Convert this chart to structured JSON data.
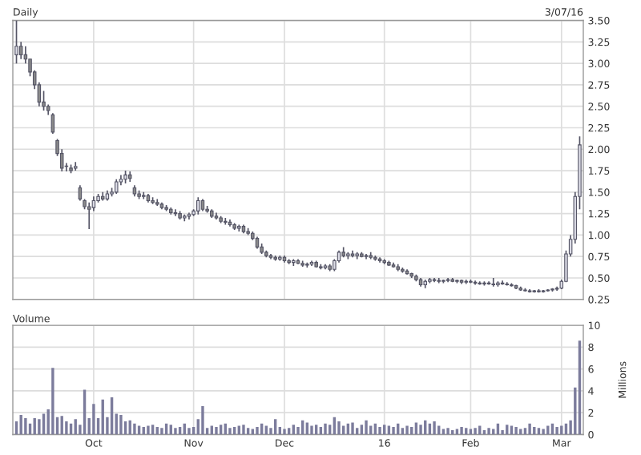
{
  "chart_data": [
    {
      "type": "candlestick",
      "title": "Daily",
      "annotations": [
        "3/07/16"
      ],
      "grid": true,
      "legend": false,
      "categories": [
        null,
        null,
        null,
        null,
        null,
        null,
        null,
        null,
        null,
        null,
        null,
        null,
        null,
        null,
        null,
        null,
        null,
        null,
        null,
        null,
        null,
        null,
        null,
        null,
        null,
        null,
        null,
        null,
        null,
        null,
        null,
        null,
        null,
        null,
        null,
        null,
        null,
        null,
        null,
        null,
        null,
        null,
        null,
        null,
        null,
        null,
        null,
        null,
        null,
        null,
        null,
        null,
        null,
        null,
        null,
        null,
        null,
        null,
        null,
        null,
        null,
        null,
        null,
        null,
        null,
        null,
        null,
        null,
        null,
        null,
        null,
        null,
        null,
        null,
        null,
        null,
        null,
        null,
        null,
        null,
        null,
        null,
        null,
        null,
        null,
        null,
        null,
        null,
        null,
        null,
        null,
        null,
        null,
        null,
        null,
        null,
        null,
        null,
        null,
        null,
        null,
        null,
        null,
        null,
        null,
        null,
        null,
        null,
        null,
        null,
        null,
        null,
        null,
        null,
        null,
        null,
        null,
        null,
        null,
        null,
        null,
        null,
        null,
        null,
        null
      ],
      "ohlc": [
        [
          3.1,
          3.5,
          3.0,
          3.2
        ],
        [
          3.2,
          3.25,
          3.05,
          3.1
        ],
        [
          3.1,
          3.2,
          3.0,
          3.05
        ],
        [
          3.05,
          3.05,
          2.85,
          2.9
        ],
        [
          2.9,
          2.92,
          2.7,
          2.75
        ],
        [
          2.75,
          2.78,
          2.5,
          2.55
        ],
        [
          2.55,
          2.68,
          2.45,
          2.5
        ],
        [
          2.5,
          2.52,
          2.4,
          2.45
        ],
        [
          2.4,
          2.42,
          2.18,
          2.2
        ],
        [
          2.1,
          2.12,
          1.92,
          1.95
        ],
        [
          1.95,
          2.0,
          1.74,
          1.78
        ],
        [
          1.8,
          1.84,
          1.74,
          1.8
        ],
        [
          1.78,
          1.82,
          1.72,
          1.75
        ],
        [
          1.78,
          1.85,
          1.75,
          1.8
        ],
        [
          1.55,
          1.58,
          1.4,
          1.42
        ],
        [
          1.4,
          1.42,
          1.3,
          1.33
        ],
        [
          1.33,
          1.38,
          1.07,
          1.3
        ],
        [
          1.32,
          1.45,
          1.28,
          1.4
        ],
        [
          1.4,
          1.48,
          1.38,
          1.45
        ],
        [
          1.45,
          1.5,
          1.4,
          1.42
        ],
        [
          1.42,
          1.52,
          1.4,
          1.48
        ],
        [
          1.48,
          1.55,
          1.45,
          1.5
        ],
        [
          1.5,
          1.65,
          1.48,
          1.62
        ],
        [
          1.62,
          1.7,
          1.58,
          1.65
        ],
        [
          1.65,
          1.75,
          1.6,
          1.7
        ],
        [
          1.7,
          1.74,
          1.62,
          1.66
        ],
        [
          1.55,
          1.58,
          1.45,
          1.48
        ],
        [
          1.48,
          1.52,
          1.42,
          1.45
        ],
        [
          1.45,
          1.5,
          1.42,
          1.46
        ],
        [
          1.46,
          1.48,
          1.38,
          1.4
        ],
        [
          1.4,
          1.44,
          1.36,
          1.38
        ],
        [
          1.38,
          1.42,
          1.34,
          1.36
        ],
        [
          1.36,
          1.38,
          1.3,
          1.32
        ],
        [
          1.32,
          1.35,
          1.28,
          1.3
        ],
        [
          1.3,
          1.32,
          1.24,
          1.26
        ],
        [
          1.26,
          1.3,
          1.22,
          1.25
        ],
        [
          1.25,
          1.28,
          1.18,
          1.2
        ],
        [
          1.2,
          1.24,
          1.16,
          1.22
        ],
        [
          1.22,
          1.26,
          1.18,
          1.24
        ],
        [
          1.24,
          1.3,
          1.22,
          1.28
        ],
        [
          1.28,
          1.44,
          1.24,
          1.4
        ],
        [
          1.4,
          1.42,
          1.28,
          1.3
        ],
        [
          1.3,
          1.34,
          1.26,
          1.28
        ],
        [
          1.28,
          1.3,
          1.2,
          1.22
        ],
        [
          1.22,
          1.26,
          1.18,
          1.2
        ],
        [
          1.2,
          1.22,
          1.14,
          1.16
        ],
        [
          1.16,
          1.2,
          1.12,
          1.15
        ],
        [
          1.15,
          1.18,
          1.1,
          1.12
        ],
        [
          1.12,
          1.14,
          1.06,
          1.08
        ],
        [
          1.08,
          1.12,
          1.04,
          1.1
        ],
        [
          1.1,
          1.12,
          1.02,
          1.04
        ],
        [
          1.04,
          1.08,
          1.0,
          1.02
        ],
        [
          1.02,
          1.04,
          0.94,
          0.96
        ],
        [
          0.96,
          0.98,
          0.84,
          0.86
        ],
        [
          0.86,
          0.9,
          0.78,
          0.8
        ],
        [
          0.8,
          0.82,
          0.74,
          0.76
        ],
        [
          0.76,
          0.78,
          0.72,
          0.74
        ],
        [
          0.74,
          0.76,
          0.7,
          0.72
        ],
        [
          0.72,
          0.76,
          0.7,
          0.74
        ],
        [
          0.74,
          0.76,
          0.68,
          0.7
        ],
        [
          0.7,
          0.72,
          0.66,
          0.68
        ],
        [
          0.68,
          0.72,
          0.64,
          0.7
        ],
        [
          0.7,
          0.72,
          0.66,
          0.67
        ],
        [
          0.67,
          0.7,
          0.63,
          0.65
        ],
        [
          0.65,
          0.68,
          0.62,
          0.66
        ],
        [
          0.66,
          0.7,
          0.64,
          0.68
        ],
        [
          0.68,
          0.7,
          0.62,
          0.63
        ],
        [
          0.63,
          0.66,
          0.6,
          0.62
        ],
        [
          0.62,
          0.66,
          0.6,
          0.64
        ],
        [
          0.64,
          0.66,
          0.58,
          0.6
        ],
        [
          0.6,
          0.72,
          0.58,
          0.7
        ],
        [
          0.7,
          0.82,
          0.68,
          0.8
        ],
        [
          0.8,
          0.86,
          0.74,
          0.76
        ],
        [
          0.76,
          0.8,
          0.72,
          0.78
        ],
        [
          0.78,
          0.82,
          0.74,
          0.76
        ],
        [
          0.76,
          0.8,
          0.72,
          0.78
        ],
        [
          0.78,
          0.8,
          0.74,
          0.75
        ],
        [
          0.75,
          0.78,
          0.72,
          0.76
        ],
        [
          0.76,
          0.8,
          0.72,
          0.74
        ],
        [
          0.74,
          0.76,
          0.7,
          0.72
        ],
        [
          0.72,
          0.74,
          0.68,
          0.7
        ],
        [
          0.7,
          0.72,
          0.66,
          0.68
        ],
        [
          0.68,
          0.7,
          0.64,
          0.65
        ],
        [
          0.65,
          0.68,
          0.62,
          0.63
        ],
        [
          0.63,
          0.66,
          0.58,
          0.6
        ],
        [
          0.6,
          0.62,
          0.56,
          0.58
        ],
        [
          0.58,
          0.6,
          0.54,
          0.55
        ],
        [
          0.55,
          0.56,
          0.5,
          0.52
        ],
        [
          0.52,
          0.54,
          0.46,
          0.48
        ],
        [
          0.48,
          0.5,
          0.4,
          0.42
        ],
        [
          0.42,
          0.48,
          0.38,
          0.46
        ],
        [
          0.46,
          0.5,
          0.44,
          0.48
        ],
        [
          0.48,
          0.5,
          0.45,
          0.47
        ],
        [
          0.47,
          0.5,
          0.44,
          0.46
        ],
        [
          0.46,
          0.48,
          0.44,
          0.47
        ],
        [
          0.47,
          0.5,
          0.45,
          0.48
        ],
        [
          0.48,
          0.5,
          0.45,
          0.46
        ],
        [
          0.46,
          0.48,
          0.44,
          0.47
        ],
        [
          0.47,
          0.48,
          0.43,
          0.45
        ],
        [
          0.45,
          0.48,
          0.43,
          0.46
        ],
        [
          0.46,
          0.48,
          0.44,
          0.45
        ],
        [
          0.45,
          0.47,
          0.42,
          0.44
        ],
        [
          0.44,
          0.46,
          0.42,
          0.43
        ],
        [
          0.43,
          0.46,
          0.41,
          0.44
        ],
        [
          0.44,
          0.46,
          0.42,
          0.43
        ],
        [
          0.43,
          0.5,
          0.4,
          0.42
        ],
        [
          0.42,
          0.46,
          0.4,
          0.44
        ],
        [
          0.44,
          0.47,
          0.42,
          0.43
        ],
        [
          0.43,
          0.45,
          0.41,
          0.42
        ],
        [
          0.42,
          0.44,
          0.4,
          0.41
        ],
        [
          0.41,
          0.42,
          0.37,
          0.38
        ],
        [
          0.38,
          0.4,
          0.35,
          0.36
        ],
        [
          0.36,
          0.38,
          0.34,
          0.35
        ],
        [
          0.35,
          0.37,
          0.33,
          0.34
        ],
        [
          0.34,
          0.36,
          0.33,
          0.35
        ],
        [
          0.35,
          0.37,
          0.33,
          0.34
        ],
        [
          0.34,
          0.36,
          0.33,
          0.35
        ],
        [
          0.35,
          0.37,
          0.34,
          0.36
        ],
        [
          0.36,
          0.38,
          0.34,
          0.37
        ],
        [
          0.37,
          0.4,
          0.35,
          0.38
        ],
        [
          0.38,
          0.48,
          0.37,
          0.46
        ],
        [
          0.46,
          0.82,
          0.45,
          0.78
        ],
        [
          0.78,
          1.0,
          0.75,
          0.95
        ],
        [
          0.95,
          1.5,
          0.9,
          1.45
        ],
        [
          1.45,
          2.15,
          1.3,
          2.05
        ]
      ],
      "ylim": [
        0.25,
        3.5
      ],
      "yticks": [
        {
          "value": 0.25,
          "label": "0.25"
        },
        {
          "value": 0.5,
          "label": "0.50"
        },
        {
          "value": 0.75,
          "label": "0.75"
        },
        {
          "value": 1.0,
          "label": "1.00"
        },
        {
          "value": 1.25,
          "label": "1.25"
        },
        {
          "value": 1.5,
          "label": "1.50"
        },
        {
          "value": 1.75,
          "label": "1.75"
        },
        {
          "value": 2.0,
          "label": "2.00"
        },
        {
          "value": 2.25,
          "label": "2.25"
        },
        {
          "value": 2.5,
          "label": "2.50"
        },
        {
          "value": 2.75,
          "label": "2.75"
        },
        {
          "value": 3.0,
          "label": "3.00"
        },
        {
          "value": 3.25,
          "label": "3.25"
        },
        {
          "value": 3.5,
          "label": "3.50"
        }
      ]
    },
    {
      "type": "bar",
      "title": "Volume",
      "ylabel": "Millions",
      "grid": true,
      "legend": false,
      "color": "#7c7c9c",
      "categories": [
        null,
        null,
        null,
        null,
        null,
        null,
        null,
        null,
        null,
        null,
        null,
        null,
        null,
        null,
        null,
        null,
        null,
        "Oct",
        null,
        null,
        null,
        null,
        null,
        null,
        null,
        null,
        null,
        null,
        null,
        null,
        null,
        null,
        null,
        null,
        null,
        null,
        null,
        null,
        null,
        "Nov",
        null,
        null,
        null,
        null,
        null,
        null,
        null,
        null,
        null,
        null,
        null,
        null,
        null,
        null,
        null,
        null,
        null,
        null,
        null,
        "Dec",
        null,
        null,
        null,
        null,
        null,
        null,
        null,
        null,
        null,
        null,
        null,
        null,
        null,
        null,
        null,
        null,
        null,
        null,
        null,
        null,
        null,
        "16",
        null,
        null,
        null,
        null,
        null,
        null,
        null,
        null,
        null,
        null,
        null,
        null,
        null,
        null,
        null,
        null,
        null,
        null,
        "Feb",
        null,
        null,
        null,
        null,
        null,
        null,
        null,
        null,
        null,
        null,
        null,
        null,
        null,
        null,
        null,
        null,
        null,
        null,
        null,
        "Mar",
        null,
        null,
        null,
        null
      ],
      "values": [
        1.2,
        1.8,
        1.5,
        1.0,
        1.5,
        1.4,
        1.9,
        2.3,
        6.1,
        1.6,
        1.7,
        1.2,
        1.0,
        1.4,
        0.9,
        4.1,
        1.5,
        2.8,
        1.5,
        3.2,
        1.6,
        3.4,
        1.9,
        1.8,
        1.2,
        1.3,
        1.0,
        0.8,
        0.7,
        0.8,
        0.9,
        0.7,
        0.6,
        1.0,
        0.9,
        0.6,
        0.7,
        1.0,
        0.6,
        0.7,
        1.4,
        2.6,
        0.6,
        0.8,
        0.7,
        0.9,
        1.0,
        0.6,
        0.7,
        0.8,
        0.9,
        0.6,
        0.5,
        0.7,
        1.0,
        0.8,
        0.6,
        1.4,
        0.7,
        0.5,
        0.6,
        0.9,
        0.7,
        1.3,
        1.1,
        0.8,
        0.9,
        0.7,
        1.0,
        0.9,
        1.6,
        1.2,
        0.8,
        1.0,
        1.1,
        0.6,
        0.9,
        1.3,
        0.8,
        1.0,
        0.7,
        0.9,
        0.8,
        0.7,
        1.0,
        0.6,
        0.8,
        0.7,
        1.1,
        0.9,
        1.3,
        1.0,
        1.2,
        0.8,
        0.5,
        0.6,
        0.4,
        0.5,
        0.7,
        0.6,
        0.5,
        0.6,
        0.8,
        0.4,
        0.6,
        0.5,
        1.0,
        0.4,
        0.9,
        0.8,
        0.7,
        0.5,
        0.6,
        1.0,
        0.7,
        0.6,
        0.5,
        0.8,
        1.0,
        0.7,
        0.8,
        1.0,
        1.3,
        4.3,
        8.6
      ],
      "ylim": [
        0,
        10
      ],
      "yticks": [
        0,
        2,
        4,
        6,
        8,
        10
      ]
    }
  ]
}
